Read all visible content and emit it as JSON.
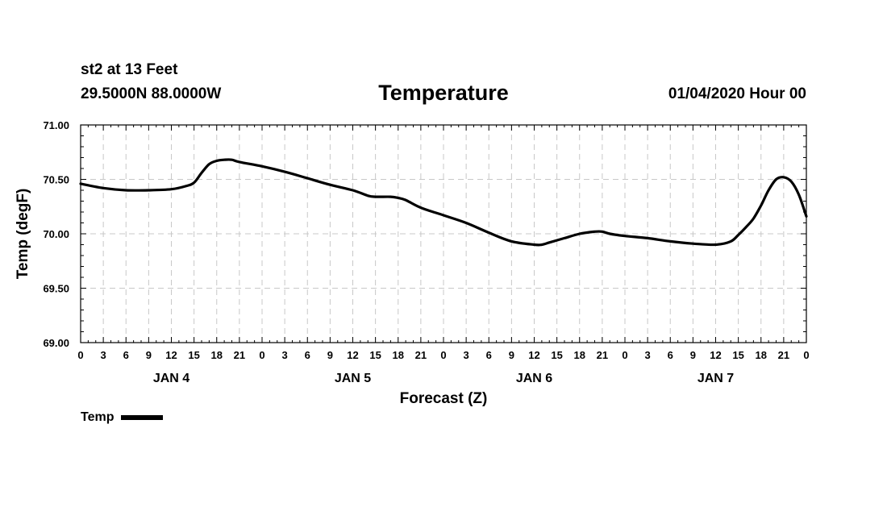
{
  "header": {
    "station": "st2 at 13 Feet",
    "coords": "29.5000N 88.0000W",
    "title": "Temperature",
    "datetime": "01/04/2020 Hour 00"
  },
  "chart_data": {
    "type": "line",
    "title": "Temperature",
    "xlabel": "Forecast (Z)",
    "ylabel": "Temp (degF)",
    "ylim": [
      69.0,
      71.0
    ],
    "yticks": [
      "69.00",
      "69.50",
      "70.00",
      "70.50",
      "71.00"
    ],
    "xlim_hours": [
      0,
      96
    ],
    "xtick_labels": [
      "0",
      "3",
      "6",
      "9",
      "12",
      "15",
      "18",
      "21",
      "0",
      "3",
      "6",
      "9",
      "12",
      "15",
      "18",
      "21",
      "0",
      "3",
      "6",
      "9",
      "12",
      "15",
      "18",
      "21",
      "0",
      "3",
      "6",
      "9",
      "12",
      "15",
      "18",
      "21",
      "0"
    ],
    "day_labels": [
      {
        "hour": 12,
        "label": "JAN 4"
      },
      {
        "hour": 36,
        "label": "JAN 5"
      },
      {
        "hour": 60,
        "label": "JAN 6"
      },
      {
        "hour": 84,
        "label": "JAN 7"
      }
    ],
    "grid": true,
    "series": [
      {
        "name": "Temp",
        "color": "#000000",
        "x_hours": [
          0,
          3,
          6,
          9,
          12,
          14,
          15,
          16,
          17,
          18,
          19,
          20,
          21,
          24,
          27,
          30,
          33,
          36,
          38,
          39,
          41,
          42,
          43,
          45,
          48,
          51,
          54,
          57,
          60,
          61,
          62,
          63,
          64,
          66,
          68,
          69,
          70,
          72,
          75,
          78,
          81,
          84,
          86,
          87,
          88,
          89,
          90,
          91,
          92,
          93,
          94,
          95,
          96
        ],
        "values": [
          70.46,
          70.42,
          70.4,
          70.4,
          70.41,
          70.44,
          70.47,
          70.56,
          70.64,
          70.67,
          70.68,
          70.68,
          70.66,
          70.62,
          70.57,
          70.51,
          70.45,
          70.4,
          70.35,
          70.34,
          70.34,
          70.33,
          70.31,
          70.24,
          70.17,
          70.1,
          70.01,
          69.93,
          69.9,
          69.9,
          69.92,
          69.94,
          69.96,
          70.0,
          70.02,
          70.02,
          70.0,
          69.98,
          69.96,
          69.93,
          69.91,
          69.9,
          69.93,
          69.99,
          70.06,
          70.14,
          70.26,
          70.4,
          70.5,
          70.52,
          70.48,
          70.36,
          70.16
        ]
      }
    ],
    "legend": {
      "label": "Temp",
      "position": "bottom-left"
    }
  }
}
